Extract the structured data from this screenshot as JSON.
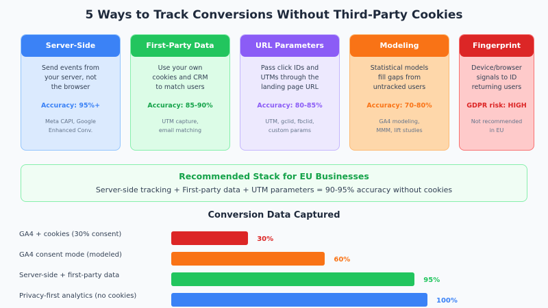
{
  "title": "5 Ways to Track Conversions Without Third-Party Cookies",
  "cards": [
    {
      "title": "Server-Side",
      "desc": "Send events from\nyour server, not\nthe browser",
      "metric": "Accuracy: 95%+",
      "examples": "Meta CAPI, Google\nEnhanced Conv.",
      "color": "#3b82f6",
      "bg": "#dbeafe",
      "border": "#93c5fd"
    },
    {
      "title": "First-Party Data",
      "desc": "Use your own\ncookies and CRM\nto match users",
      "metric": "Accuracy: 85-90%",
      "examples": "UTM capture,\nemail matching",
      "color": "#22c55e",
      "bg": "#dcfce7",
      "border": "#86efac",
      "metric_color": "#16a34a"
    },
    {
      "title": "URL Parameters",
      "desc": "Pass click IDs and\nUTMs through the\nlanding page URL",
      "metric": "Accuracy: 80-85%",
      "examples": "UTM, gclid, fbclid,\ncustom params",
      "color": "#8b5cf6",
      "bg": "#ede9fe",
      "border": "#c4b5fd"
    },
    {
      "title": "Modeling",
      "desc": "Statistical models\nfill gaps from\nuntracked users",
      "metric": "Accuracy: 70-80%",
      "examples": "GA4 modeling,\nMMM, lift studies",
      "color": "#f97316",
      "bg": "#fed7aa",
      "border": "#fdba74"
    },
    {
      "title": "Fingerprint",
      "desc": "Device/browser\nsignals to ID\nreturning users",
      "metric": "GDPR risk: HIGH",
      "examples": "Not recommended\nin EU",
      "color": "#dc2626",
      "bg": "#fecaca",
      "border": "#f87171"
    }
  ],
  "recommended": {
    "title": "Recommended Stack for EU Businesses",
    "text": "Server-side tracking + First-party data + UTM parameters = 90-95% accuracy without cookies"
  },
  "chart_data": {
    "type": "bar",
    "title": "Conversion Data Captured",
    "categories": [
      "GA4 + cookies (30% consent)",
      "GA4 consent mode (modeled)",
      "Server-side + first-party data",
      "Privacy-first analytics (no cookies)"
    ],
    "values": [
      30,
      60,
      95,
      100
    ],
    "labels": [
      "30%",
      "60%",
      "95%",
      "100%"
    ],
    "colors": [
      "#dc2626",
      "#f97316",
      "#22c55e",
      "#3b82f6"
    ]
  }
}
